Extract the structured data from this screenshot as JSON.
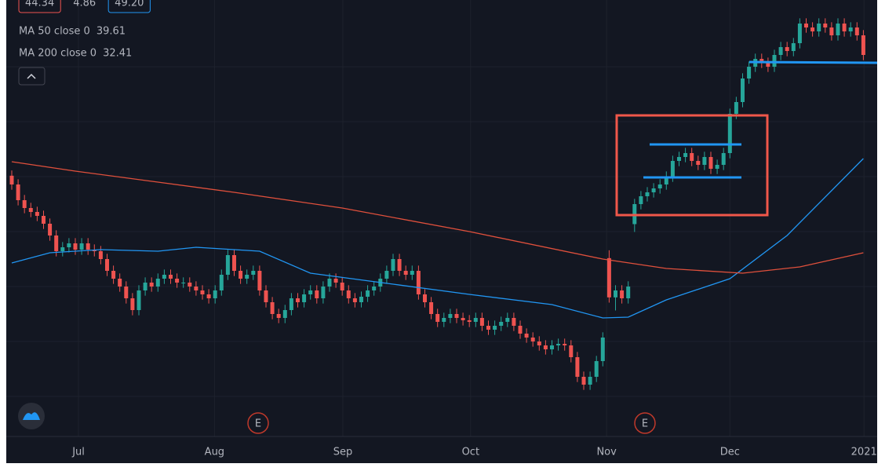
{
  "chart_data": {
    "type": "candlestick",
    "header_values": [
      "44.34",
      "4.86",
      "49.20"
    ],
    "up_color": "#26a69a",
    "down_color": "#ef5350",
    "ohlc": {
      "open": [
        38.3,
        37.63,
        36.43,
        35.83,
        35.53,
        35.23,
        34.63,
        33.73,
        32.53,
        32.83,
        33.13,
        32.65,
        33.13,
        32.65,
        32.53,
        31.93,
        31.03,
        30.43,
        29.83,
        28.93,
        28.03,
        29.53,
        30.13,
        29.83,
        30.43,
        30.73,
        30.43,
        30.13,
        30.13,
        29.83,
        29.53,
        29.23,
        28.93,
        29.53,
        30.73,
        32.23,
        31.03,
        30.43,
        30.73,
        31.03,
        29.53,
        28.63,
        27.73,
        27.43,
        28.03,
        28.93,
        28.63,
        29.23,
        29.53,
        28.93,
        29.83,
        30.43,
        30.13,
        29.53,
        28.93,
        28.63,
        29.05,
        29.53,
        29.83,
        30.43,
        31.03,
        31.93,
        31.03,
        30.73,
        31.03,
        29.23,
        28.63,
        27.73,
        27.13,
        27.43,
        27.73,
        27.43,
        27.25,
        27.13,
        27.43,
        26.83,
        26.53,
        26.83,
        27.13,
        27.43,
        26.83,
        26.23,
        25.93,
        25.63,
        25.33,
        25.03,
        25.33,
        25.45,
        25.33,
        24.43,
        22.93,
        22.33,
        22.93,
        24.13,
        32.0,
        29.0,
        29.53,
        28.93,
        34.6,
        36.13,
        36.73,
        37.03,
        37.33,
        37.63,
        38.23,
        39.43,
        39.73,
        40.03,
        39.43,
        39.13,
        39.73,
        38.83,
        39.13,
        40.03,
        43.03,
        43.93,
        45.73,
        46.63,
        47.23,
        46.93,
        46.63,
        47.53,
        48.13,
        47.83,
        48.43,
        49.93,
        49.63,
        49.33,
        49.93,
        49.63,
        49.03,
        49.93,
        49.33,
        49.63,
        49.03
      ],
      "high": [
        38.7,
        38.03,
        36.83,
        36.23,
        35.93,
        35.63,
        35.03,
        34.13,
        33.23,
        33.53,
        33.53,
        33.53,
        33.53,
        33.05,
        32.93,
        32.33,
        31.43,
        30.83,
        30.23,
        29.33,
        29.93,
        30.53,
        30.53,
        30.83,
        31.13,
        31.13,
        30.83,
        30.53,
        30.53,
        30.23,
        29.93,
        29.63,
        29.93,
        31.13,
        32.63,
        32.63,
        31.43,
        31.13,
        31.43,
        31.43,
        29.93,
        29.03,
        28.13,
        28.43,
        29.33,
        29.33,
        29.63,
        29.93,
        29.93,
        30.23,
        30.83,
        30.83,
        30.53,
        29.93,
        29.33,
        29.45,
        29.93,
        30.23,
        30.83,
        31.43,
        32.33,
        32.33,
        31.43,
        31.43,
        31.43,
        29.63,
        29.03,
        28.13,
        27.83,
        28.13,
        28.13,
        27.83,
        27.65,
        27.83,
        27.83,
        27.23,
        27.23,
        27.53,
        27.83,
        27.83,
        27.23,
        26.63,
        26.33,
        26.03,
        25.73,
        25.73,
        25.85,
        25.85,
        25.73,
        24.83,
        23.33,
        23.33,
        24.53,
        26.33,
        32.6,
        29.93,
        29.93,
        30.23,
        36.53,
        37.13,
        37.43,
        37.73,
        38.03,
        38.63,
        39.83,
        40.13,
        40.43,
        40.43,
        39.83,
        40.13,
        40.13,
        39.53,
        40.43,
        43.43,
        44.33,
        46.13,
        47.03,
        47.63,
        47.63,
        47.33,
        47.93,
        48.53,
        48.53,
        48.83,
        50.33,
        50.33,
        50.03,
        50.33,
        50.33,
        50.03,
        50.33,
        50.33,
        50.03,
        50.03,
        49.43
      ],
      "low": [
        37.23,
        36.03,
        35.43,
        35.13,
        34.83,
        34.23,
        33.33,
        32.13,
        32.13,
        32.43,
        32.25,
        32.25,
        32.25,
        32.13,
        31.53,
        30.63,
        30.03,
        29.43,
        28.53,
        27.63,
        27.63,
        29.13,
        29.43,
        29.43,
        30.03,
        30.03,
        29.73,
        29.73,
        29.43,
        29.13,
        28.83,
        28.53,
        28.53,
        29.13,
        30.33,
        30.63,
        30.03,
        30.03,
        30.33,
        29.13,
        28.23,
        27.33,
        27.03,
        27.03,
        27.63,
        28.23,
        28.23,
        28.83,
        28.53,
        28.53,
        29.43,
        29.73,
        29.13,
        28.53,
        28.23,
        28.23,
        28.65,
        29.13,
        29.43,
        30.03,
        30.63,
        30.63,
        30.33,
        30.33,
        28.83,
        28.23,
        27.33,
        26.73,
        26.73,
        27.03,
        27.03,
        26.85,
        26.73,
        26.73,
        26.43,
        26.13,
        26.13,
        26.43,
        26.73,
        26.43,
        25.83,
        25.53,
        25.23,
        24.93,
        24.63,
        24.63,
        24.93,
        24.93,
        24.03,
        22.53,
        21.93,
        21.93,
        22.53,
        23.73,
        28.6,
        28.0,
        28.53,
        28.53,
        34.0,
        35.73,
        36.33,
        36.63,
        36.93,
        37.23,
        37.83,
        39.03,
        39.33,
        39.03,
        38.73,
        38.73,
        38.43,
        38.43,
        38.73,
        39.63,
        42.63,
        43.53,
        45.33,
        46.23,
        46.53,
        46.23,
        46.23,
        47.13,
        47.43,
        47.43,
        48.03,
        49.23,
        48.93,
        48.93,
        49.23,
        48.63,
        48.63,
        48.93,
        48.93,
        48.63,
        47.13
      ],
      "close": [
        37.63,
        36.43,
        35.83,
        35.53,
        35.23,
        34.63,
        33.73,
        32.53,
        32.83,
        33.13,
        32.65,
        33.13,
        32.65,
        32.53,
        31.93,
        31.03,
        30.43,
        29.83,
        28.93,
        28.03,
        29.53,
        30.13,
        29.83,
        30.43,
        30.73,
        30.43,
        30.13,
        30.13,
        29.83,
        29.53,
        29.23,
        28.93,
        29.53,
        30.73,
        32.23,
        31.03,
        30.43,
        30.73,
        31.03,
        29.53,
        28.63,
        27.73,
        27.43,
        28.03,
        28.93,
        28.63,
        29.23,
        29.53,
        28.93,
        29.83,
        30.43,
        30.13,
        29.53,
        28.93,
        28.63,
        29.05,
        29.53,
        29.83,
        30.43,
        31.03,
        31.93,
        31.03,
        30.73,
        31.03,
        29.23,
        28.63,
        27.73,
        27.13,
        27.43,
        27.73,
        27.43,
        27.25,
        27.13,
        27.43,
        26.83,
        26.53,
        26.83,
        27.13,
        27.43,
        26.83,
        26.23,
        25.93,
        25.63,
        25.33,
        25.03,
        25.33,
        25.45,
        25.33,
        24.43,
        22.93,
        22.33,
        22.93,
        24.13,
        25.93,
        29.0,
        29.53,
        28.93,
        29.83,
        36.13,
        36.73,
        37.03,
        37.33,
        37.63,
        38.23,
        39.43,
        39.73,
        40.03,
        39.43,
        39.13,
        39.73,
        38.83,
        39.13,
        40.03,
        43.03,
        43.93,
        45.73,
        46.63,
        47.23,
        46.93,
        46.63,
        47.53,
        48.13,
        47.83,
        48.43,
        49.93,
        49.63,
        49.33,
        49.93,
        49.63,
        49.03,
        49.93,
        49.33,
        49.63,
        49.03,
        47.53
      ]
    },
    "series": [
      {
        "name": "MA 50 close 0",
        "color": "#2196f3",
        "x": [
          0,
          6,
          14,
          23,
          29,
          39,
          47,
          60,
          72,
          85,
          93,
          97,
          103,
          113,
          122,
          134
        ],
        "values": [
          31.63,
          32.41,
          32.65,
          32.53,
          32.83,
          32.53,
          30.85,
          30.01,
          29.23,
          28.45,
          27.43,
          27.49,
          28.81,
          30.43,
          33.73,
          39.61
        ]
      },
      {
        "name": "MA 200 close 0",
        "color": "#e0503c",
        "x": [
          0,
          10,
          23,
          35,
          52,
          72,
          93,
          103,
          115,
          124,
          134
        ],
        "values": [
          39.37,
          38.65,
          37.81,
          37.03,
          35.83,
          34.03,
          31.93,
          31.21,
          30.85,
          31.33,
          32.41
        ]
      }
    ],
    "xlim": [
      -1.85,
      136.05
    ],
    "xticks": [
      {
        "value": 10.5,
        "label": "Jul"
      },
      {
        "value": 31.9,
        "label": "Aug"
      },
      {
        "value": 52.1,
        "label": "Sep"
      },
      {
        "value": 72.2,
        "label": "Oct"
      },
      {
        "value": 93.6,
        "label": "Nov"
      },
      {
        "value": 113,
        "label": "Dec"
      },
      {
        "value": 134.1,
        "label": "2021"
      }
    ],
    "ylim": [
      18.37,
      51.25
    ],
    "grid": true,
    "events": [
      "E",
      "E"
    ]
  }
}
